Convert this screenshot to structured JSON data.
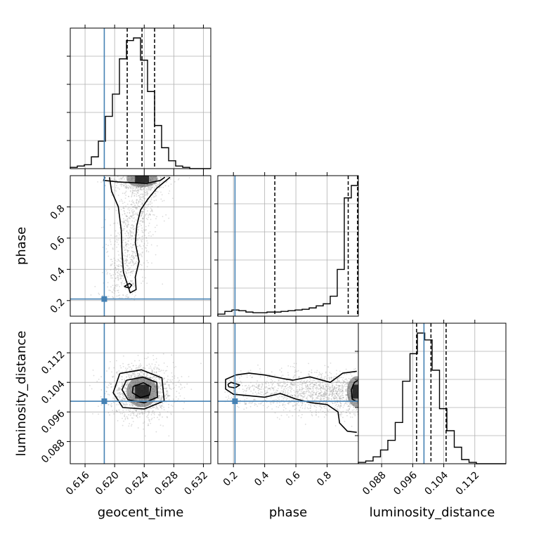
{
  "chart_data": {
    "type": "corner",
    "grid": true,
    "truth_color": "#4682b4",
    "parameters": [
      {
        "name": "geocent_time",
        "label": "geocent_time",
        "range": [
          0.614,
          0.633
        ],
        "ticks": [
          0.616,
          0.62,
          0.624,
          0.628,
          0.632
        ],
        "tick_labels": [
          "0.616",
          "0.620",
          "0.624",
          "0.628",
          "0.632"
        ],
        "truth": 0.6186,
        "quantiles": [
          0.6217,
          0.6237,
          0.6254
        ],
        "hist_bins": [
          0.614,
          0.633,
          20
        ],
        "hist_counts": [
          1,
          2,
          3,
          9,
          21,
          40,
          57,
          84,
          98,
          100,
          83,
          59,
          33,
          16,
          6,
          2,
          1,
          0,
          0,
          0
        ]
      },
      {
        "name": "phase",
        "label": "phase",
        "range": [
          0.1,
          1.0
        ],
        "ticks": [
          0.2,
          0.4,
          0.6,
          0.8
        ],
        "tick_labels": [
          "0.2",
          "0.4",
          "0.6",
          "0.8"
        ],
        "truth": 0.21,
        "quantiles": [
          0.465,
          0.935,
          0.995
        ],
        "hist_bins": [
          0.1,
          1.0,
          20
        ],
        "hist_counts": [
          3,
          7,
          9,
          8,
          6,
          5,
          5,
          6,
          6,
          7,
          8,
          9,
          10,
          12,
          15,
          18,
          29,
          68,
          172,
          190
        ]
      },
      {
        "name": "luminosity_distance",
        "label": "luminosity_distance",
        "range": [
          0.082,
          0.12
        ],
        "ticks": [
          0.088,
          0.096,
          0.104,
          0.112
        ],
        "tick_labels": [
          "0.088",
          "0.096",
          "0.104",
          "0.112"
        ],
        "truth": 0.0989,
        "quantiles": [
          0.097,
          0.1007,
          0.1046
        ],
        "hist_bins": [
          0.082,
          0.12,
          20
        ],
        "hist_counts": [
          1,
          2,
          5,
          10,
          17,
          30,
          60,
          80,
          95,
          90,
          68,
          40,
          24,
          12,
          3,
          1,
          0,
          0,
          0,
          0
        ]
      }
    ],
    "pairs": [
      {
        "x": "geocent_time",
        "y": "phase",
        "peak": [
          0.6237,
          0.98
        ],
        "spread": [
          0.0022,
          0.05
        ],
        "contours": [
          {
            "level": "inner",
            "points": [
              [
                0.6187,
                0.99
              ],
              [
                0.6185,
                0.97
              ],
              [
                0.6205,
                0.96
              ],
              [
                0.6243,
                0.95
              ],
              [
                0.6262,
                0.97
              ],
              [
                0.6268,
                0.99
              ]
            ]
          },
          {
            "level": "outer",
            "points": [
              [
                0.6193,
                0.99
              ],
              [
                0.6196,
                0.9
              ],
              [
                0.6205,
                0.8
              ],
              [
                0.6209,
                0.65
              ],
              [
                0.621,
                0.5
              ],
              [
                0.6212,
                0.38
              ],
              [
                0.6221,
                0.25
              ],
              [
                0.6229,
                0.27
              ],
              [
                0.6228,
                0.35
              ],
              [
                0.6233,
                0.45
              ],
              [
                0.6228,
                0.57
              ],
              [
                0.623,
                0.68
              ],
              [
                0.6235,
                0.78
              ],
              [
                0.6245,
                0.85
              ],
              [
                0.6257,
                0.92
              ],
              [
                0.6275,
                0.99
              ]
            ]
          },
          {
            "level": "island",
            "points": [
              [
                0.6213,
                0.29
              ],
              [
                0.622,
                0.31
              ],
              [
                0.6223,
                0.3
              ],
              [
                0.622,
                0.28
              ],
              [
                0.6213,
                0.29
              ]
            ]
          }
        ]
      },
      {
        "x": "geocent_time",
        "y": "luminosity_distance",
        "peak": [
          0.6237,
          0.1015
        ],
        "spread": [
          0.0022,
          0.0035
        ],
        "contours": [
          {
            "level": "inner",
            "points": [
              [
                0.6225,
                0.1029
              ],
              [
                0.6239,
                0.1039
              ],
              [
                0.6249,
                0.1028
              ],
              [
                0.6247,
                0.1006
              ],
              [
                0.6235,
                0.0999
              ],
              [
                0.6224,
                0.1012
              ],
              [
                0.6225,
                0.1029
              ]
            ]
          },
          {
            "level": "middle",
            "points": [
              [
                0.6216,
                0.1046
              ],
              [
                0.6238,
                0.1054
              ],
              [
                0.6257,
                0.104
              ],
              [
                0.6258,
                0.1
              ],
              [
                0.624,
                0.0985
              ],
              [
                0.6218,
                0.0993
              ],
              [
                0.621,
                0.102
              ],
              [
                0.6216,
                0.1046
              ]
            ]
          },
          {
            "level": "outer",
            "points": [
              [
                0.6207,
                0.1064
              ],
              [
                0.6236,
                0.1074
              ],
              [
                0.6264,
                0.1052
              ],
              [
                0.6267,
                0.099
              ],
              [
                0.624,
                0.0968
              ],
              [
                0.6211,
                0.0972
              ],
              [
                0.6198,
                0.1012
              ],
              [
                0.6207,
                0.1064
              ]
            ]
          }
        ]
      },
      {
        "x": "phase",
        "y": "luminosity_distance",
        "peak": [
          0.99,
          0.1015
        ],
        "spread": [
          0.04,
          0.0025
        ],
        "contours": [
          {
            "level": "inner",
            "points": [
              [
                0.995,
                0.1045
              ],
              [
                0.975,
                0.104
              ],
              [
                0.955,
                0.102
              ],
              [
                0.96,
                0.0995
              ],
              [
                0.98,
                0.099
              ],
              [
                0.995,
                0.0988
              ]
            ]
          },
          {
            "level": "outer",
            "points": [
              [
                0.99,
                0.107
              ],
              [
                0.9,
                0.1065
              ],
              [
                0.82,
                0.104
              ],
              [
                0.69,
                0.1055
              ],
              [
                0.58,
                0.1046
              ],
              [
                0.52,
                0.105
              ],
              [
                0.4,
                0.106
              ],
              [
                0.3,
                0.1065
              ],
              [
                0.215,
                0.106
              ],
              [
                0.15,
                0.1048
              ],
              [
                0.15,
                0.1022
              ],
              [
                0.2,
                0.1008
              ],
              [
                0.3,
                0.1004
              ],
              [
                0.4,
                0.1
              ],
              [
                0.5,
                0.101
              ],
              [
                0.6,
                0.0995
              ],
              [
                0.7,
                0.0985
              ],
              [
                0.8,
                0.098
              ],
              [
                0.87,
                0.096
              ],
              [
                0.88,
                0.093
              ],
              [
                0.93,
                0.0908
              ],
              [
                0.99,
                0.0905
              ]
            ]
          },
          {
            "level": "island",
            "points": [
              [
                0.165,
                0.1035
              ],
              [
                0.185,
                0.104
              ],
              [
                0.24,
                0.1033
              ],
              [
                0.21,
                0.1025
              ],
              [
                0.17,
                0.1028
              ],
              [
                0.165,
                0.1035
              ]
            ]
          }
        ]
      }
    ]
  }
}
